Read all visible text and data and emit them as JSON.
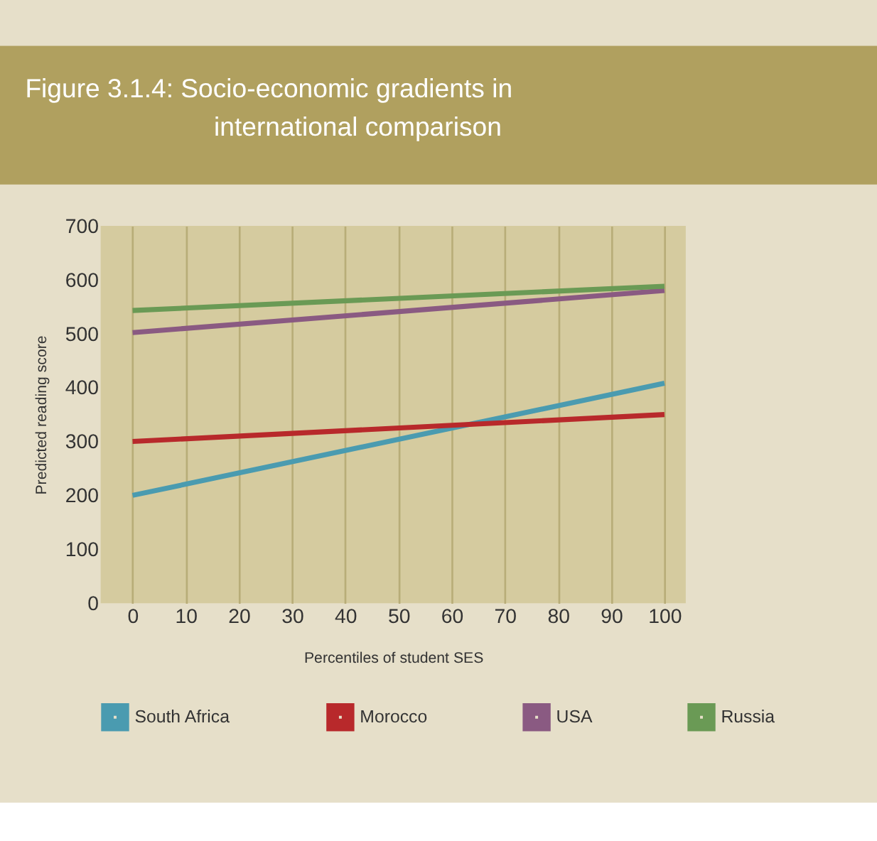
{
  "chart_data": {
    "type": "line",
    "title": "Figure 3.1.4: Socio-economic gradients in international comparison",
    "xlabel": "Percentiles of student SES",
    "ylabel": "Predicted reading score",
    "x": [
      0,
      100
    ],
    "series": [
      {
        "name": "South Africa",
        "color": "#4a9bb0",
        "values": [
          200,
          408
        ]
      },
      {
        "name": "Morocco",
        "color": "#b8292b",
        "values": [
          300,
          350
        ]
      },
      {
        "name": "USA",
        "color": "#8a5a82",
        "values": [
          502,
          580
        ]
      },
      {
        "name": "Russia",
        "color": "#6a9a55",
        "values": [
          543,
          588
        ]
      }
    ],
    "xlim": [
      -6,
      104
    ],
    "xticks": [
      0,
      10,
      20,
      30,
      40,
      50,
      60,
      70,
      80,
      90,
      100
    ],
    "ylim": [
      0,
      700
    ],
    "yticks": [
      0,
      100,
      200,
      300,
      400,
      500,
      600,
      700
    ],
    "grid": "x",
    "legend": "bottom",
    "marker": "none",
    "line_style": "solid"
  }
}
